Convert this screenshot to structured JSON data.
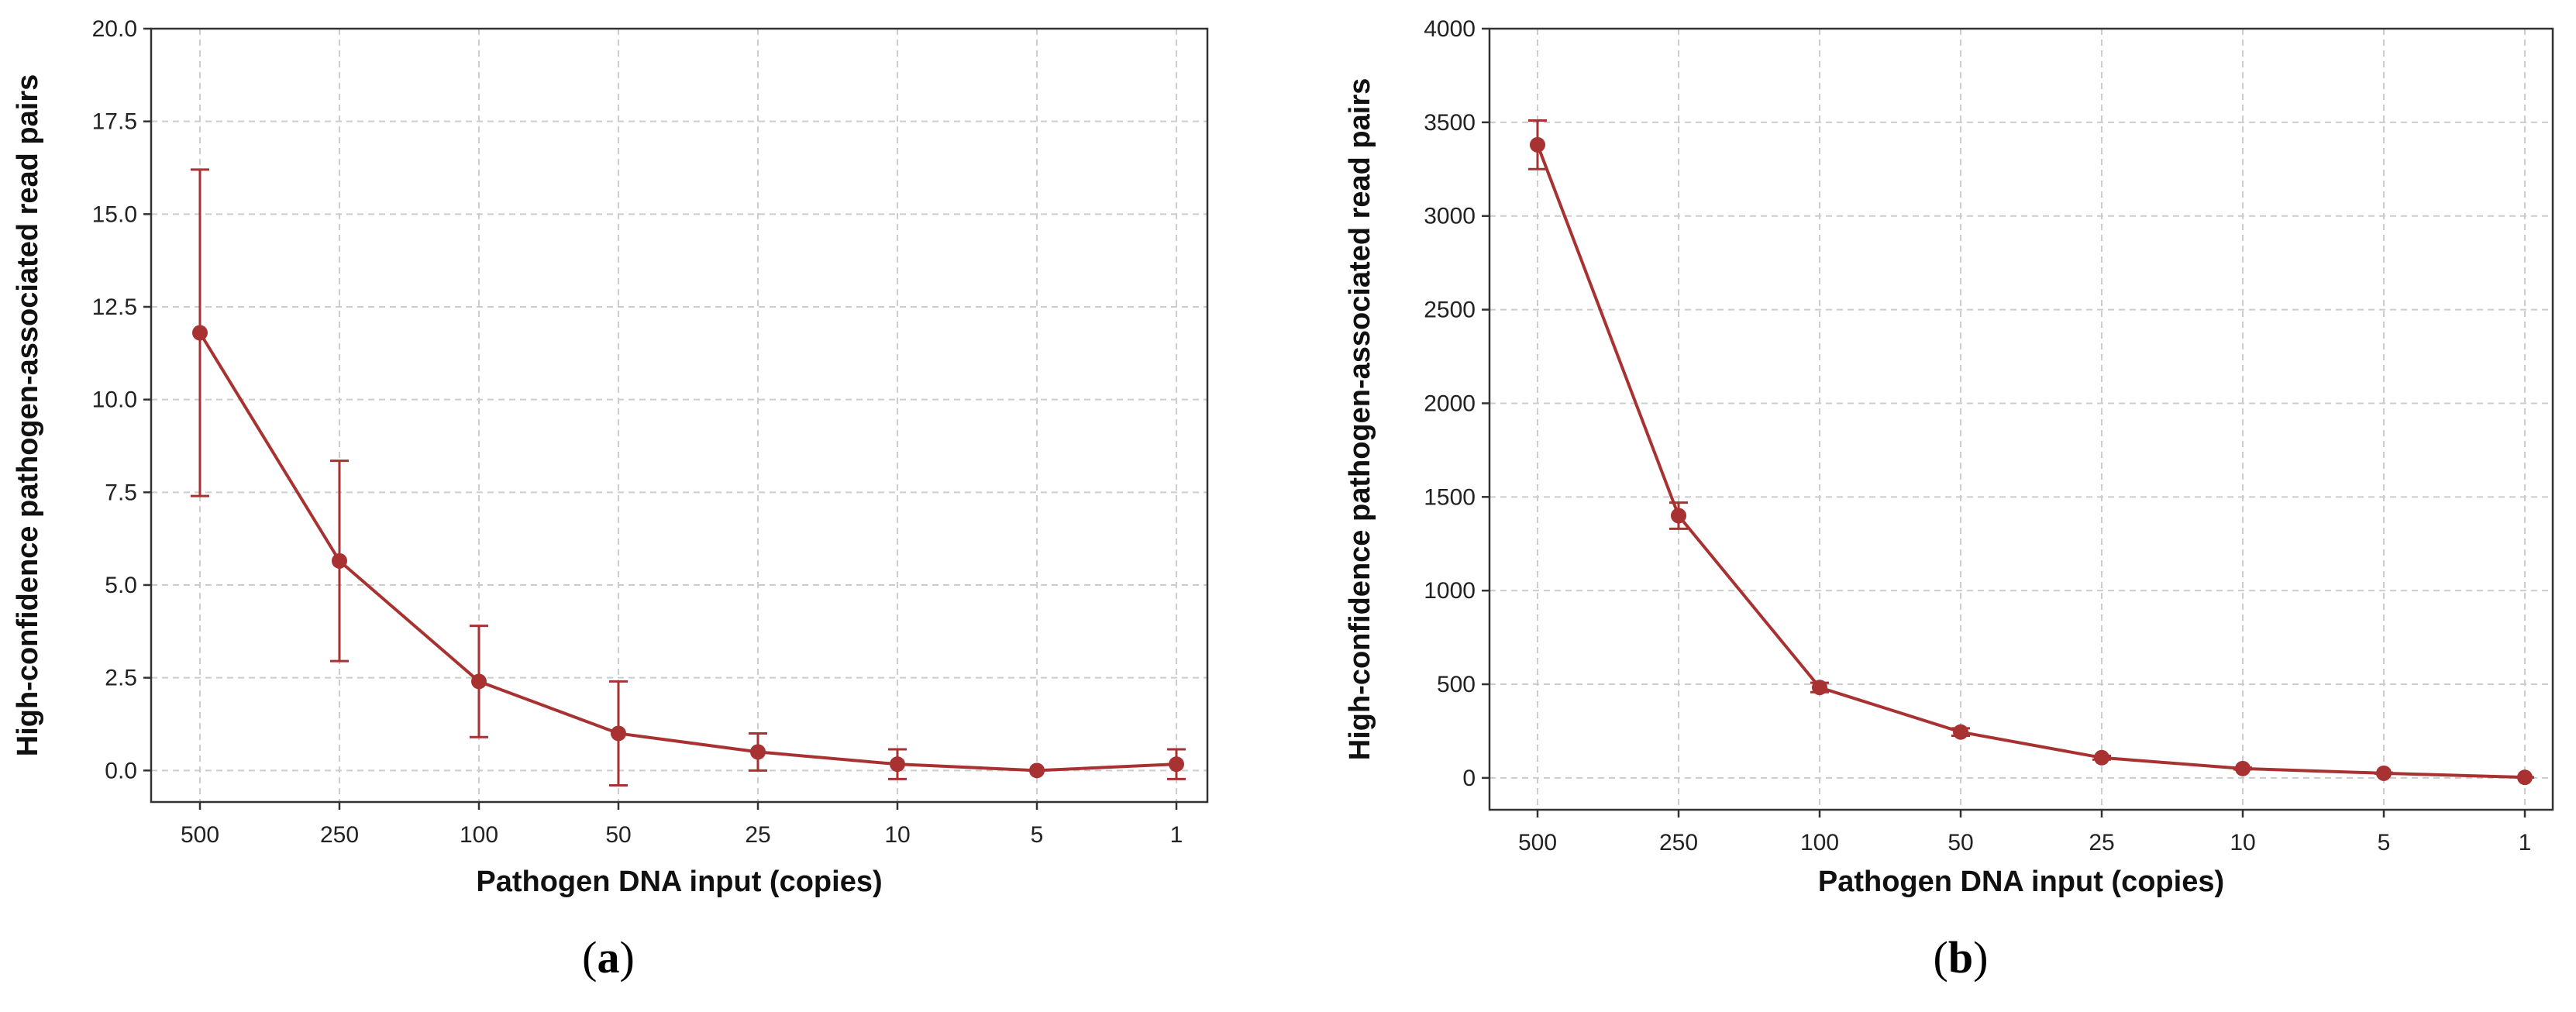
{
  "colors": {
    "series": "#a83232",
    "grid": "#cccccc",
    "axis": "#333333"
  },
  "chart_data": [
    {
      "type": "line",
      "caption": "(a)",
      "caption_letter": "a",
      "xlabel": "Pathogen DNA input (copies)",
      "ylabel": "High-confidence pathogen-associated read pairs",
      "categories": [
        "500",
        "250",
        "100",
        "50",
        "25",
        "10",
        "5",
        "1"
      ],
      "values": [
        11.8,
        5.65,
        2.4,
        1.0,
        0.5,
        0.17,
        0.0,
        0.17
      ],
      "error": [
        4.4,
        2.7,
        1.5,
        1.4,
        0.5,
        0.4,
        0.0,
        0.4
      ],
      "ylim": [
        -0.85,
        20.0
      ],
      "yticks": [
        0.0,
        2.5,
        5.0,
        7.5,
        10.0,
        12.5,
        15.0,
        17.5,
        20.0
      ],
      "ytick_labels": [
        "0.0",
        "2.5",
        "5.0",
        "7.5",
        "10.0",
        "12.5",
        "15.0",
        "17.5",
        "20.0"
      ],
      "grid": true
    },
    {
      "type": "line",
      "caption": "(b)",
      "caption_letter": "b",
      "xlabel": "Pathogen DNA input (copies)",
      "ylabel": "High-confidence pathogen-associated read pairs",
      "categories": [
        "500",
        "250",
        "100",
        "50",
        "25",
        "10",
        "5",
        "1"
      ],
      "values": [
        3380,
        1400,
        483,
        245,
        108,
        50,
        25,
        3
      ],
      "error": [
        130,
        70,
        25,
        20,
        10,
        5,
        3,
        1
      ],
      "ylim": [
        -170,
        4000
      ],
      "yticks": [
        0,
        500,
        1000,
        1500,
        2000,
        2500,
        3000,
        3500,
        4000
      ],
      "ytick_labels": [
        "0",
        "500",
        "1000",
        "1500",
        "2000",
        "2500",
        "3000",
        "3500",
        "4000"
      ],
      "grid": true
    }
  ]
}
